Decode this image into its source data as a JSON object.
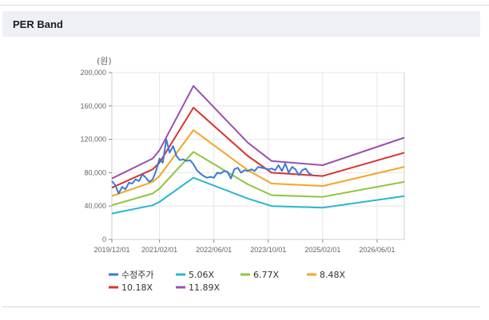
{
  "panel": {
    "title": "PER Band"
  },
  "chart_data": {
    "type": "line",
    "unit_label": "(원)",
    "y_ticks": [
      "0",
      "40,000",
      "80,000",
      "120,000",
      "160,000",
      "200,000"
    ],
    "ylim": [
      0,
      200000
    ],
    "x_ticks": [
      "2019/12/01",
      "2021/02/01",
      "2022/06/01",
      "2023/10/01",
      "2025/02/01",
      "2026/06/01"
    ],
    "x_tick_pos": [
      0,
      14,
      30,
      46,
      62,
      78
    ],
    "xlim": [
      0,
      86
    ],
    "grid": true,
    "legend": "bottom",
    "series": [
      {
        "name": "수정주가",
        "color": "#3a7ad6",
        "width": 2,
        "points": [
          [
            0,
            70000
          ],
          [
            1,
            65000
          ],
          [
            2,
            55000
          ],
          [
            3,
            63000
          ],
          [
            4,
            60000
          ],
          [
            5,
            68000
          ],
          [
            6,
            67000
          ],
          [
            7,
            72000
          ],
          [
            8,
            70000
          ],
          [
            9,
            78000
          ],
          [
            10,
            74000
          ],
          [
            11,
            69000
          ],
          [
            12,
            72000
          ],
          [
            13,
            82000
          ],
          [
            14,
            97000
          ],
          [
            15,
            92000
          ],
          [
            16,
            120000
          ],
          [
            17,
            104000
          ],
          [
            18,
            112000
          ],
          [
            19,
            100000
          ],
          [
            20,
            95000
          ],
          [
            21,
            96000
          ],
          [
            22,
            94000
          ],
          [
            23,
            95000
          ],
          [
            24,
            90000
          ],
          [
            25,
            83000
          ],
          [
            26,
            79000
          ],
          [
            27,
            76000
          ],
          [
            28,
            74000
          ],
          [
            29,
            75000
          ],
          [
            30,
            74000
          ],
          [
            31,
            80000
          ],
          [
            32,
            79000
          ],
          [
            33,
            82000
          ],
          [
            34,
            81000
          ],
          [
            35,
            73000
          ],
          [
            36,
            84000
          ],
          [
            37,
            86000
          ],
          [
            38,
            80000
          ],
          [
            39,
            83000
          ],
          [
            40,
            82000
          ],
          [
            41,
            84000
          ],
          [
            42,
            82000
          ],
          [
            43,
            87000
          ],
          [
            44,
            86000
          ],
          [
            45,
            85000
          ],
          [
            46,
            84000
          ],
          [
            47,
            85000
          ],
          [
            48,
            83000
          ],
          [
            49,
            89000
          ],
          [
            50,
            82000
          ],
          [
            51,
            91000
          ],
          [
            52,
            80000
          ],
          [
            53,
            87000
          ],
          [
            54,
            84000
          ],
          [
            55,
            77000
          ],
          [
            56,
            83000
          ],
          [
            57,
            85000
          ],
          [
            58,
            79000
          ],
          [
            59,
            77000
          ]
        ]
      },
      {
        "name": "5.06X",
        "color": "#29b7ce",
        "width": 2,
        "points": [
          [
            0,
            31000
          ],
          [
            12,
            41000
          ],
          [
            14,
            45000
          ],
          [
            24,
            74000
          ],
          [
            40,
            49000
          ],
          [
            47,
            40000
          ],
          [
            62,
            38000
          ],
          [
            86,
            52000
          ]
        ]
      },
      {
        "name": "6.77X",
        "color": "#8dc63f",
        "width": 2,
        "points": [
          [
            0,
            41000
          ],
          [
            12,
            55000
          ],
          [
            14,
            61000
          ],
          [
            24,
            105000
          ],
          [
            40,
            66000
          ],
          [
            47,
            53000
          ],
          [
            62,
            51000
          ],
          [
            86,
            69000
          ]
        ]
      },
      {
        "name": "8.48X",
        "color": "#f5a623",
        "width": 2,
        "points": [
          [
            0,
            52000
          ],
          [
            12,
            69000
          ],
          [
            14,
            76000
          ],
          [
            24,
            131000
          ],
          [
            40,
            83000
          ],
          [
            47,
            67000
          ],
          [
            62,
            64000
          ],
          [
            86,
            87000
          ]
        ]
      },
      {
        "name": "10.18X",
        "color": "#d9342b",
        "width": 2,
        "points": [
          [
            0,
            62000
          ],
          [
            12,
            84000
          ],
          [
            14,
            92000
          ],
          [
            24,
            158000
          ],
          [
            40,
            100000
          ],
          [
            47,
            80000
          ],
          [
            62,
            76000
          ],
          [
            86,
            104000
          ]
        ]
      },
      {
        "name": "11.89X",
        "color": "#9b50b0",
        "width": 2,
        "points": [
          [
            0,
            73000
          ],
          [
            12,
            97000
          ],
          [
            14,
            107000
          ],
          [
            24,
            184000
          ],
          [
            40,
            116000
          ],
          [
            47,
            94000
          ],
          [
            62,
            89000
          ],
          [
            86,
            122000
          ]
        ]
      }
    ]
  }
}
